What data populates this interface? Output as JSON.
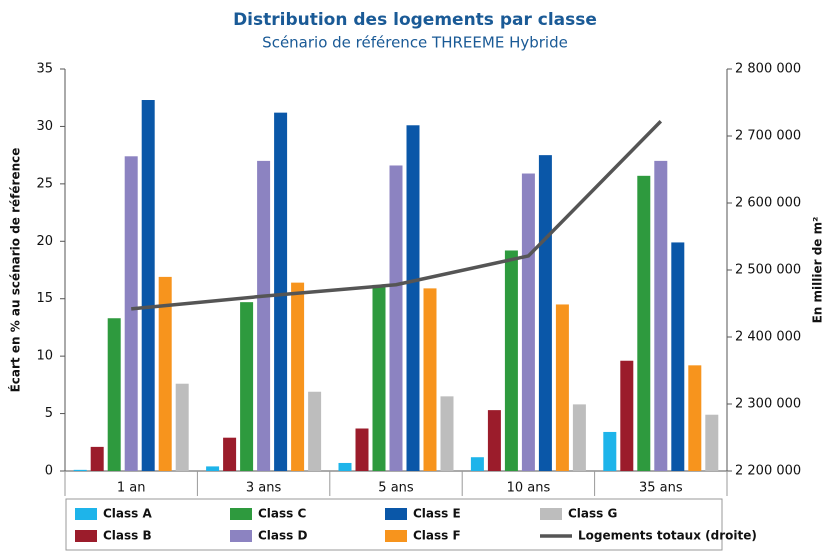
{
  "chart_data": {
    "type": "bar",
    "title": "Distribution des logements par classe",
    "subtitle": "Scénario de référence THREEME Hybride",
    "ylabel": "Écart en % au scénario de référence",
    "y2label": "En millier de m²",
    "categories": [
      "1 an",
      "3 ans",
      "5 ans",
      "10 ans",
      "35 ans"
    ],
    "ylim": [
      0,
      35
    ],
    "yticks": [
      0,
      5,
      10,
      15,
      20,
      25,
      30,
      35
    ],
    "y2lim": [
      2200000,
      2800000
    ],
    "y2ticks": [
      {
        "value": 2200000,
        "label": "2 200 000"
      },
      {
        "value": 2300000,
        "label": "2 300 000"
      },
      {
        "value": 2400000,
        "label": "2 400 000"
      },
      {
        "value": 2500000,
        "label": "2 500 000"
      },
      {
        "value": 2600000,
        "label": "2 600 000"
      },
      {
        "value": 2700000,
        "label": "2 700 000"
      },
      {
        "value": 2800000,
        "label": "2 800 000"
      }
    ],
    "grid": false,
    "series": [
      {
        "name": "Class A",
        "color": "#1eb4ea",
        "values": [
          0.1,
          0.4,
          0.7,
          1.2,
          3.4
        ]
      },
      {
        "name": "Class B",
        "color": "#9b1c2b",
        "values": [
          2.1,
          2.9,
          3.7,
          5.3,
          9.6
        ]
      },
      {
        "name": "Class C",
        "color": "#2e9a3e",
        "values": [
          13.3,
          14.7,
          16.2,
          19.2,
          25.7
        ]
      },
      {
        "name": "Class D",
        "color": "#8c83c1",
        "values": [
          27.4,
          27.0,
          26.6,
          25.9,
          27.0
        ]
      },
      {
        "name": "Class E",
        "color": "#0a57a8",
        "values": [
          32.3,
          31.2,
          30.1,
          27.5,
          19.9
        ]
      },
      {
        "name": "Class F",
        "color": "#f7941d",
        "values": [
          16.9,
          16.4,
          15.9,
          14.5,
          9.2
        ]
      },
      {
        "name": "Class G",
        "color": "#bdbdbd",
        "values": [
          7.6,
          6.9,
          6.5,
          5.8,
          4.9
        ]
      },
      {
        "name": "Logements totaux (droite)",
        "color": "#555555",
        "type": "line",
        "axis": "y2",
        "values": [
          2442000,
          2461000,
          2478000,
          2521000,
          2722000
        ]
      }
    ]
  }
}
